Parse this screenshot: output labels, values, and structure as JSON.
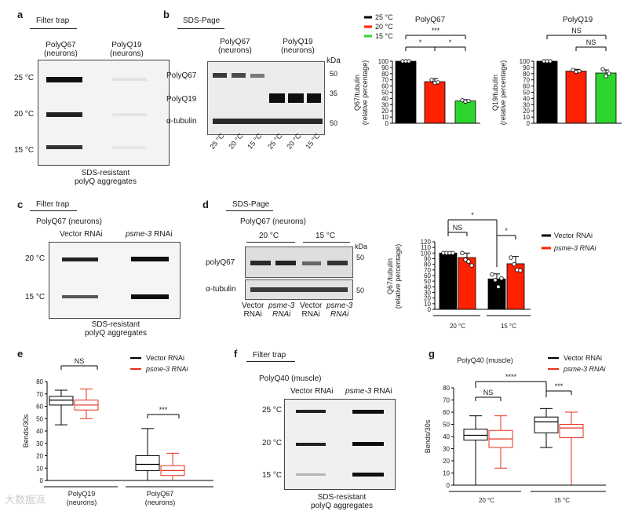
{
  "panel_labels": {
    "a": "a",
    "b": "b",
    "c": "c",
    "d": "d",
    "e": "e",
    "f": "f",
    "g": "g"
  },
  "panel_a": {
    "heading": "Filter trap",
    "col1": "PolyQ67\n(neurons)",
    "col2": "PolyQ19\n(neurons)",
    "rows": [
      "25 °C",
      "20 °C",
      "15 °C"
    ],
    "caption": "SDS-resistant\npolyQ aggregates"
  },
  "panel_b": {
    "heading": "SDS-Page",
    "col1": "PolyQ67\n(neurons)",
    "col2": "PolyQ19\n(neurons)",
    "kda": "kDa",
    "row_labels": [
      "PolyQ67",
      "PolyQ19",
      "α-tubulin"
    ],
    "markers": [
      "50",
      "35",
      "50"
    ],
    "lanes": [
      "25 °C",
      "20 °C",
      "15 °C",
      "25 °C",
      "20 °C",
      "15 °C"
    ]
  },
  "panel_c": {
    "heading": "Filter trap",
    "subtitle": "PolyQ67 (neurons)",
    "col1": "Vector RNAi",
    "col2_italic": "psme-3",
    "col2_suffix": " RNAi",
    "rows": [
      "20 °C",
      "15 °C"
    ],
    "caption": "SDS-resistant\npolyQ aggregates"
  },
  "panel_d": {
    "heading": "SDS-Page",
    "subtitle": "PolyQ67 (neurons)",
    "groups": [
      "20 °C",
      "15 °C"
    ],
    "kda": "kDa",
    "row_labels": [
      "polyQ67",
      "α-tubulin"
    ],
    "markers": [
      "50",
      "50"
    ],
    "lanes": [
      "Vector\nRNAi",
      "psme-3\nRNAi",
      "Vector\nRNAi",
      "psme-3\nRNAi"
    ]
  },
  "panel_f": {
    "heading": "Filter trap",
    "subtitle": "PolyQ40 (muscle)",
    "col1": "Vector RNAi",
    "col2_italic": "psme-3",
    "col2_suffix": " RNAi",
    "rows": [
      "25 °C",
      "20 °C",
      "15 °C"
    ],
    "caption": "SDS-resistant\npolyQ aggregates"
  },
  "watermark": "大数据派",
  "chart_data": [
    {
      "id": "b_polyq67",
      "type": "bar",
      "title": "PolyQ67",
      "ylabel": "Q67/tubulin\n(relative percentage)",
      "ylim": [
        0,
        100
      ],
      "yticks": [
        0,
        10,
        20,
        30,
        40,
        50,
        60,
        70,
        80,
        90,
        100
      ],
      "categories": [
        "25 °C",
        "20 °C",
        "15 °C"
      ],
      "values": [
        100,
        67,
        36
      ],
      "errors": [
        0,
        5,
        2
      ],
      "colors": [
        "#000000",
        "#ff2200",
        "#2fd52f"
      ],
      "points": [
        [
          100,
          100,
          100
        ],
        [
          70,
          65,
          66
        ],
        [
          37,
          35,
          36
        ]
      ],
      "legend": [
        "25 °C",
        "20 °C",
        "15 °C"
      ],
      "legend_colors": [
        "#000000",
        "#ff2200",
        "#2fd52f"
      ],
      "significance": [
        {
          "pair": [
            "25 °C",
            "20 °C"
          ],
          "label": "*"
        },
        {
          "pair": [
            "20 °C",
            "15 °C"
          ],
          "label": "*"
        },
        {
          "pair": [
            "25 °C",
            "15 °C"
          ],
          "label": "***"
        }
      ]
    },
    {
      "id": "b_polyq19",
      "type": "bar",
      "title": "PolyQ19",
      "ylabel": "Q19/tubulin\n(relative percentage)",
      "ylim": [
        0,
        100
      ],
      "yticks": [
        0,
        10,
        20,
        30,
        40,
        50,
        60,
        70,
        80,
        90,
        100
      ],
      "categories": [
        "25 °C",
        "20 °C",
        "15 °C"
      ],
      "values": [
        100,
        84,
        81
      ],
      "errors": [
        0,
        3,
        5
      ],
      "colors": [
        "#000000",
        "#ff2200",
        "#2fd52f"
      ],
      "points": [
        [
          100,
          100,
          100
        ],
        [
          86,
          83,
          84
        ],
        [
          87,
          76,
          80
        ]
      ],
      "significance": [
        {
          "pair": [
            "25 °C",
            "20 °C"
          ],
          "label": "NS"
        },
        {
          "pair": [
            "20 °C",
            "15 °C"
          ],
          "label": "NS"
        }
      ]
    },
    {
      "id": "d_polyq67",
      "type": "bar",
      "ylabel": "Q67/tubulin\n(relative percentage)",
      "ylim": [
        0,
        120
      ],
      "yticks": [
        0,
        10,
        20,
        30,
        40,
        50,
        60,
        70,
        80,
        90,
        100,
        110,
        120
      ],
      "categories": [
        "20 °C",
        "15 °C"
      ],
      "series": [
        {
          "name": "Vector RNAi",
          "values": [
            100,
            54
          ],
          "errors": [
            0,
            9
          ],
          "color": "#000000",
          "points": [
            [
              100,
              100,
              100,
              100
            ],
            [
              62,
              52,
              40,
              55
            ]
          ]
        },
        {
          "name": "psme-3 RNAi",
          "values": [
            92,
            81
          ],
          "errors": [
            8,
            13
          ],
          "color": "#ff2200",
          "points": [
            [
              100,
              88,
              85,
              78
            ],
            [
              92,
              80,
              70,
              69
            ]
          ]
        }
      ],
      "legend": [
        "Vector RNAi",
        "psme-3 RNAi"
      ],
      "significance": [
        {
          "label": "NS"
        },
        {
          "label": "*"
        },
        {
          "label": "*"
        }
      ]
    },
    {
      "id": "e_bends",
      "type": "box",
      "ylabel": "Bends/30s",
      "ylim": [
        0,
        80
      ],
      "yticks": [
        0,
        10,
        20,
        30,
        40,
        50,
        60,
        70,
        80
      ],
      "categories": [
        "PolyQ19\n(neurons)",
        "PolyQ67\n(neurons)"
      ],
      "series": [
        {
          "name": "Vector RNAi",
          "color": "#000000",
          "boxes": [
            {
              "min": 45,
              "q1": 61,
              "median": 65,
              "q3": 68,
              "max": 73
            },
            {
              "min": 0,
              "q1": 8,
              "median": 13,
              "q3": 20,
              "max": 42
            }
          ]
        },
        {
          "name": "psme-3 RNAi",
          "color": "#e8321e",
          "boxes": [
            {
              "min": 50,
              "q1": 57,
              "median": 61,
              "q3": 65,
              "max": 74
            },
            {
              "min": 0,
              "q1": 4,
              "median": 8,
              "q3": 12,
              "max": 22
            }
          ]
        }
      ],
      "legend": [
        "Vector RNAi",
        "psme-3 RNAi"
      ],
      "significance": [
        {
          "label": "NS"
        },
        {
          "label": "***"
        }
      ]
    },
    {
      "id": "g_bends",
      "type": "box",
      "title": "PolyQ40 (muscle)",
      "ylabel": "Bends/30s",
      "ylim": [
        0,
        80
      ],
      "yticks": [
        0,
        10,
        20,
        30,
        40,
        50,
        60,
        70,
        80
      ],
      "categories": [
        "20 °C",
        "15 °C"
      ],
      "series": [
        {
          "name": "Vector RNAi",
          "color": "#000000",
          "boxes": [
            {
              "min": 0,
              "q1": 37,
              "median": 41,
              "q3": 46,
              "max": 57
            },
            {
              "min": 31,
              "q1": 43,
              "median": 52,
              "q3": 56,
              "max": 63
            }
          ]
        },
        {
          "name": "psme-3 RNAi",
          "color": "#e8321e",
          "boxes": [
            {
              "min": 14,
              "q1": 31,
              "median": 38,
              "q3": 45,
              "max": 57
            },
            {
              "min": 0,
              "q1": 39,
              "median": 47,
              "q3": 50,
              "max": 60
            }
          ]
        }
      ],
      "legend": [
        "Vector RNAi",
        "psme-3 RNAi"
      ],
      "significance": [
        {
          "label": "NS"
        },
        {
          "label": "****"
        },
        {
          "label": "***"
        }
      ]
    }
  ]
}
